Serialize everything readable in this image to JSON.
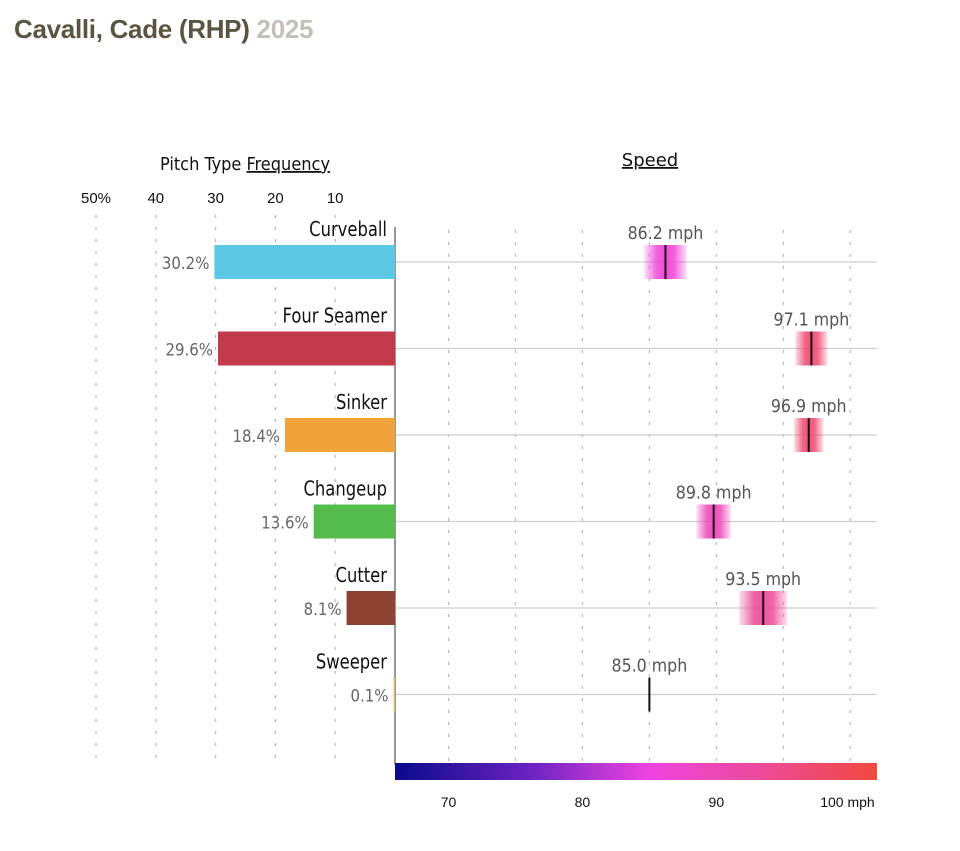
{
  "header": {
    "player": "Cavalli, Cade (RHP)",
    "year": "2025"
  },
  "chart_data": {
    "type": "bar",
    "title": "Cavalli, Cade (RHP) 2025",
    "panels": {
      "frequency": {
        "title_prefix": "Pitch Type ",
        "title_underlined": "Frequency",
        "ticks": [
          10,
          20,
          30,
          40,
          50
        ],
        "tick_labels": [
          "10",
          "20",
          "30",
          "40",
          "50%"
        ],
        "xlim": [
          0,
          50
        ],
        "direction": "right-to-left"
      },
      "speed": {
        "title": "Speed",
        "xlim": [
          66,
          102
        ],
        "gridlines": [
          70,
          75,
          80,
          85,
          90,
          95,
          100
        ],
        "tick_values": [
          70,
          80,
          90,
          100
        ],
        "tick_labels": [
          "70",
          "80",
          "90",
          "100 mph"
        ],
        "colorscale": {
          "range": [
            66,
            102
          ],
          "stops": [
            {
              "value": 66,
              "color": "#0a0a8c"
            },
            {
              "value": 76,
              "color": "#6a22c0"
            },
            {
              "value": 85,
              "color": "#ee44e0"
            },
            {
              "value": 93,
              "color": "#ec4a9c"
            },
            {
              "value": 102,
              "color": "#f04a3e"
            }
          ]
        }
      }
    },
    "categories": [
      "Curveball",
      "Four Seamer",
      "Sinker",
      "Changeup",
      "Cutter",
      "Sweeper"
    ],
    "series": [
      {
        "name": "Frequency",
        "unit": "%",
        "values": [
          30.2,
          29.6,
          18.4,
          13.6,
          8.1,
          0.1
        ],
        "labels": [
          "30.2%",
          "29.6%",
          "18.4%",
          "13.6%",
          "8.1%",
          "0.1%"
        ],
        "colors": [
          "#5bc8e4",
          "#c23a4c",
          "#f0a33a",
          "#55bb4d",
          "#8e4232",
          "#e8c060"
        ]
      },
      {
        "name": "Speed",
        "unit": "mph",
        "values": [
          86.2,
          97.1,
          96.9,
          89.8,
          93.5,
          85.0
        ],
        "labels": [
          "86.2 mph",
          "97.1 mph",
          "96.9 mph",
          "89.8 mph",
          "93.5 mph",
          "85.0 mph"
        ],
        "spread": [
          1.6,
          1.2,
          1.1,
          1.3,
          1.8,
          0
        ]
      }
    ]
  }
}
